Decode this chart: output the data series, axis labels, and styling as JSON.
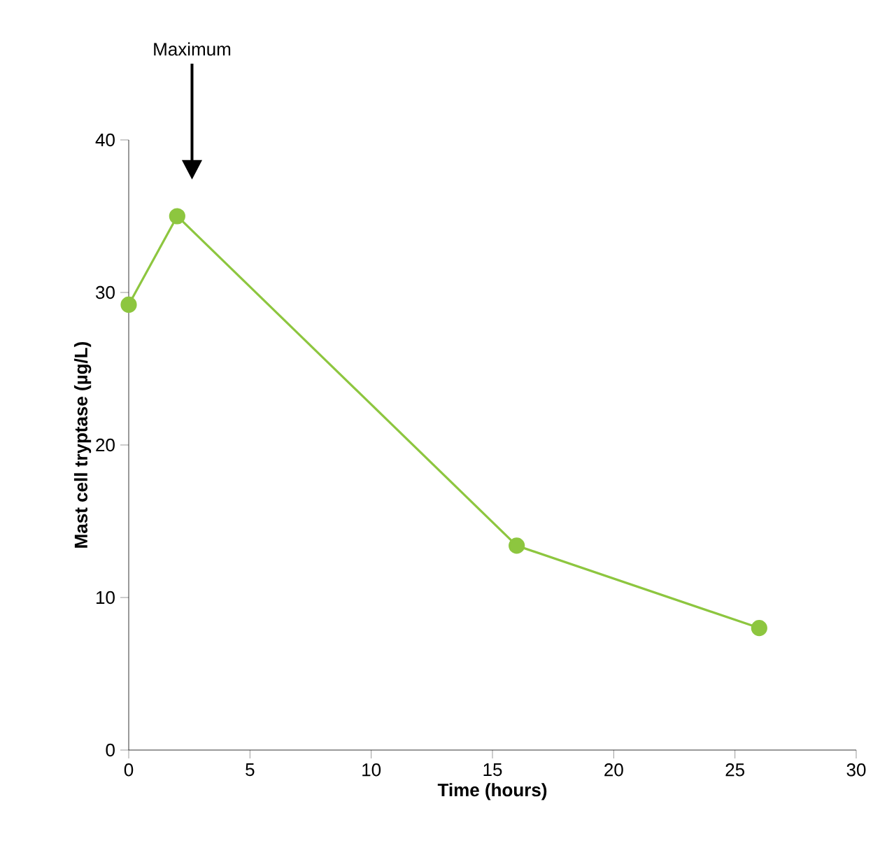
{
  "chart_data": {
    "type": "line",
    "xlabel": "Time (hours)",
    "ylabel": "Mast cell tryptase (µg/L)",
    "x": [
      0,
      2,
      16,
      26
    ],
    "series": [
      {
        "color": "#8dc63f",
        "values": [
          29.2,
          35,
          13.4,
          8
        ]
      }
    ],
    "xlim": [
      0,
      30
    ],
    "xticks": [
      0,
      5,
      10,
      15,
      20,
      25,
      30
    ],
    "ylim": [
      0,
      40
    ],
    "yticks": [
      0,
      10,
      20,
      30,
      40
    ],
    "annotations": [
      "Maximum"
    ],
    "marker": "circle",
    "line_style": "solid",
    "grid": false,
    "legend": false
  }
}
